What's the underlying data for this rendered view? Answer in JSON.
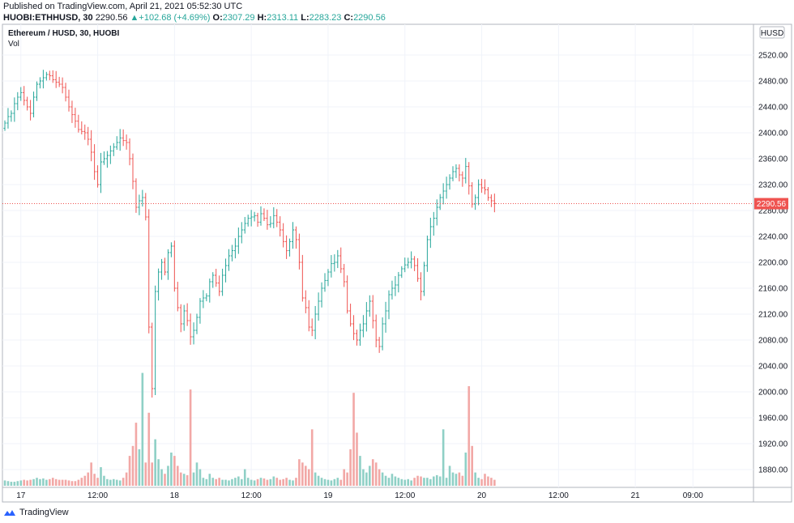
{
  "header": {
    "published": "Published on TradingView.com, April 21, 2021 05:52:30 UTC",
    "symbol_line": "HUOBI:ETHHUSD, 30",
    "last": "2290.56",
    "change": "+102.68 (+4.69%)",
    "o_label": "O:",
    "o": "2307.29",
    "h_label": "H:",
    "h": "2313.11",
    "l_label": "L:",
    "l": "2283.23",
    "c_label": "C:",
    "c": "2290.56"
  },
  "overlay": {
    "title": "Ethereum / HUSD, 30, HUOBI",
    "vol_label": "Vol",
    "currency_badge": "HUSD",
    "price_badge": "2290.56"
  },
  "footer": {
    "brand": "TradingView"
  },
  "colors": {
    "up": "#26a69a",
    "down": "#ef5350",
    "up_vol": "#8fd0c6",
    "down_vol": "#f2a8a6"
  },
  "chart_data": {
    "type": "bar",
    "style": "ohlc",
    "title": "Ethereum / HUSD, 30, HUOBI",
    "ylim": [
      1850,
      2560
    ],
    "y_ticks": [
      "2520.00",
      "2480.00",
      "2440.00",
      "2400.00",
      "2360.00",
      "2320.00",
      "2280.00",
      "2240.00",
      "2200.00",
      "2160.00",
      "2120.00",
      "2080.00",
      "2040.00",
      "2000.00",
      "1960.00",
      "1920.00",
      "1880.00"
    ],
    "x_ticks": [
      {
        "label": "17",
        "bar": 5
      },
      {
        "label": "12:00",
        "bar": 29
      },
      {
        "label": "18",
        "bar": 53
      },
      {
        "label": "12:00",
        "bar": 77
      },
      {
        "label": "19",
        "bar": 101
      },
      {
        "label": "12:00",
        "bar": 125
      },
      {
        "label": "20",
        "bar": 149
      },
      {
        "label": "12:00",
        "bar": 173
      },
      {
        "label": "21",
        "bar": 197
      },
      {
        "label": "09:00",
        "bar": 215
      }
    ],
    "last_price": 2290.56,
    "closes": [
      2415,
      2425,
      2430,
      2445,
      2455,
      2462,
      2450,
      2440,
      2430,
      2455,
      2475,
      2480,
      2485,
      2490,
      2488,
      2482,
      2478,
      2475,
      2470,
      2455,
      2440,
      2428,
      2418,
      2405,
      2402,
      2400,
      2390,
      2370,
      2340,
      2320,
      2355,
      2360,
      2365,
      2372,
      2378,
      2385,
      2392,
      2388,
      2385,
      2360,
      2325,
      2285,
      2295,
      2300,
      2270,
      2100,
      2005,
      2155,
      2185,
      2200,
      2185,
      2215,
      2225,
      2160,
      2130,
      2105,
      2125,
      2110,
      2085,
      2095,
      2115,
      2140,
      2145,
      2148,
      2170,
      2180,
      2168,
      2155,
      2180,
      2195,
      2210,
      2218,
      2225,
      2240,
      2250,
      2260,
      2268,
      2270,
      2272,
      2262,
      2275,
      2268,
      2258,
      2260,
      2272,
      2262,
      2250,
      2232,
      2218,
      2232,
      2250,
      2235,
      2200,
      2145,
      2130,
      2100,
      2095,
      2120,
      2140,
      2160,
      2172,
      2185,
      2198,
      2200,
      2210,
      2190,
      2170,
      2125,
      2105,
      2090,
      2080,
      2095,
      2105,
      2125,
      2140,
      2110,
      2080,
      2070,
      2105,
      2125,
      2150,
      2160,
      2165,
      2180,
      2190,
      2196,
      2200,
      2205,
      2195,
      2175,
      2155,
      2195,
      2235,
      2255,
      2268,
      2285,
      2300,
      2310,
      2320,
      2330,
      2340,
      2345,
      2335,
      2330,
      2348,
      2318,
      2290,
      2300,
      2320,
      2315,
      2312,
      2300,
      2295,
      2291
    ],
    "volume_scale_note": "",
    "volumes": [
      8,
      7,
      6,
      6,
      7,
      8,
      9,
      8,
      9,
      10,
      12,
      10,
      11,
      9,
      10,
      12,
      10,
      9,
      9,
      9,
      8,
      7,
      7,
      9,
      12,
      15,
      20,
      35,
      18,
      12,
      28,
      15,
      10,
      9,
      10,
      9,
      8,
      12,
      20,
      45,
      60,
      95,
      55,
      170,
      35,
      110,
      35,
      70,
      40,
      25,
      18,
      30,
      50,
      45,
      30,
      20,
      18,
      16,
      145,
      20,
      35,
      25,
      12,
      10,
      18,
      12,
      10,
      12,
      9,
      9,
      8,
      10,
      12,
      14,
      10,
      25,
      12,
      9,
      8,
      10,
      12,
      11,
      9,
      10,
      14,
      12,
      9,
      10,
      12,
      9,
      8,
      12,
      40,
      35,
      30,
      25,
      85,
      20,
      15,
      12,
      10,
      9,
      8,
      10,
      12,
      9,
      25,
      20,
      55,
      140,
      80,
      45,
      25,
      20,
      30,
      40,
      35,
      25,
      20,
      15,
      12,
      18,
      14,
      12,
      10,
      9,
      10,
      8,
      12,
      15,
      14,
      12,
      12,
      10,
      14,
      16,
      14,
      85,
      12,
      30,
      20,
      18,
      20,
      15,
      50,
      150,
      60,
      20,
      12,
      10,
      18,
      14,
      12,
      9
    ]
  }
}
